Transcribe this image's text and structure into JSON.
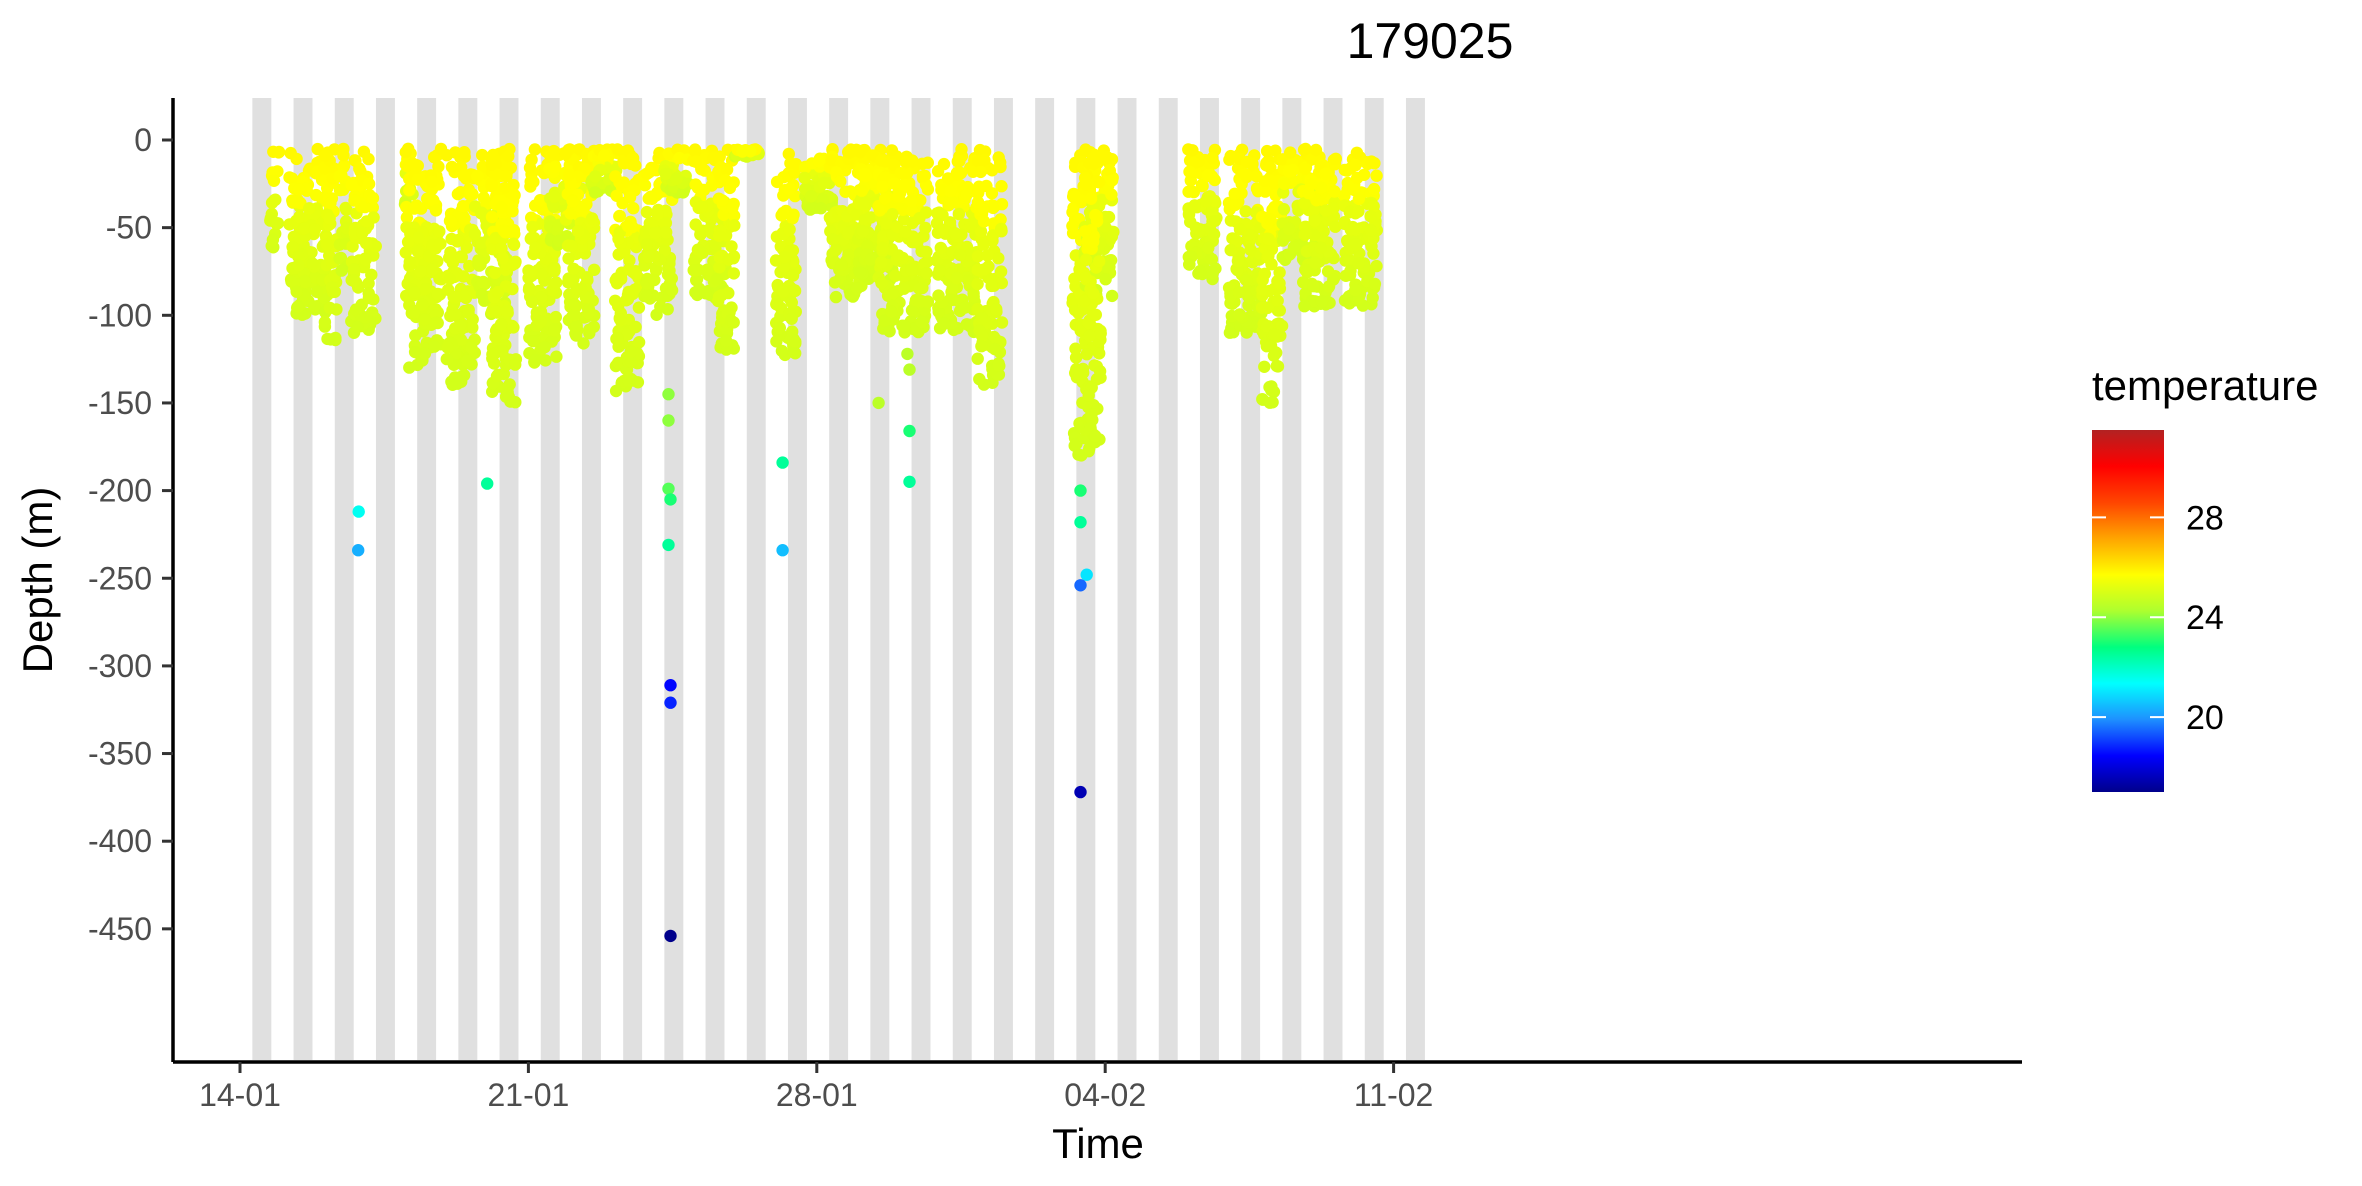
{
  "chart_data": {
    "type": "scatter",
    "title": "179025",
    "xlabel": "Time",
    "ylabel": "Depth (m)",
    "x_unit": "day (0 = 14-01)",
    "xlim": [
      -0.5,
      43.5
    ],
    "ylim": [
      -525,
      25
    ],
    "x_ticks": [
      {
        "value": 0,
        "label": "14-01"
      },
      {
        "value": 7,
        "label": "21-01"
      },
      {
        "value": 14,
        "label": "28-01"
      },
      {
        "value": 21,
        "label": "04-02"
      },
      {
        "value": 28,
        "label": "11-02"
      }
    ],
    "y_ticks": [
      {
        "value": 0,
        "label": "0"
      },
      {
        "value": -50,
        "label": "-50"
      },
      {
        "value": -100,
        "label": "-100"
      },
      {
        "value": -150,
        "label": "-150"
      },
      {
        "value": -200,
        "label": "-200"
      },
      {
        "value": -250,
        "label": "-250"
      },
      {
        "value": -300,
        "label": "-300"
      },
      {
        "value": -350,
        "label": "-350"
      },
      {
        "value": -400,
        "label": "-400"
      },
      {
        "value": -450,
        "label": "-450"
      }
    ],
    "night_bands": [
      {
        "start": 0.3,
        "end": 0.76
      },
      {
        "start": 1.3,
        "end": 1.76
      },
      {
        "start": 2.3,
        "end": 2.76
      },
      {
        "start": 3.3,
        "end": 3.76
      },
      {
        "start": 4.3,
        "end": 4.76
      },
      {
        "start": 5.3,
        "end": 5.76
      },
      {
        "start": 6.3,
        "end": 6.76
      },
      {
        "start": 7.3,
        "end": 7.76
      },
      {
        "start": 8.3,
        "end": 8.76
      },
      {
        "start": 9.3,
        "end": 9.76
      },
      {
        "start": 10.3,
        "end": 10.76
      },
      {
        "start": 11.3,
        "end": 11.76
      },
      {
        "start": 12.3,
        "end": 12.76
      },
      {
        "start": 13.3,
        "end": 13.76
      },
      {
        "start": 14.3,
        "end": 14.76
      },
      {
        "start": 15.3,
        "end": 15.76
      },
      {
        "start": 16.3,
        "end": 16.76
      },
      {
        "start": 17.3,
        "end": 17.76
      },
      {
        "start": 18.3,
        "end": 18.76
      },
      {
        "start": 19.3,
        "end": 19.76
      },
      {
        "start": 20.3,
        "end": 20.76
      },
      {
        "start": 21.3,
        "end": 21.76
      },
      {
        "start": 22.3,
        "end": 22.76
      },
      {
        "start": 23.3,
        "end": 23.76
      },
      {
        "start": 24.3,
        "end": 24.76
      },
      {
        "start": 25.3,
        "end": 25.76
      },
      {
        "start": 26.3,
        "end": 26.76
      },
      {
        "start": 27.3,
        "end": 27.76
      },
      {
        "start": 28.3,
        "end": 28.76
      }
    ],
    "surface_temperature": 25.5,
    "dive_clusters": [
      {
        "start": 0.73,
        "end": 0.95,
        "max_depth": -65
      },
      {
        "start": 1.2,
        "end": 2.2,
        "max_depth": -100
      },
      {
        "start": 2.05,
        "end": 2.35,
        "max_depth": -115
      },
      {
        "start": 2.4,
        "end": 2.6,
        "max_depth": -75
      },
      {
        "start": 2.7,
        "end": 3.3,
        "max_depth": -110
      },
      {
        "start": 4.0,
        "end": 4.2,
        "max_depth": -40
      },
      {
        "start": 4.0,
        "end": 4.9,
        "max_depth": -130
      },
      {
        "start": 5.0,
        "end": 5.7,
        "max_depth": -140
      },
      {
        "start": 5.7,
        "end": 6.5,
        "max_depth": -100
      },
      {
        "start": 6.1,
        "end": 6.7,
        "max_depth": -155
      },
      {
        "start": 7.0,
        "end": 7.7,
        "max_depth": -130
      },
      {
        "start": 7.5,
        "end": 8.3,
        "max_depth": -60
      },
      {
        "start": 7.9,
        "end": 8.6,
        "max_depth": -120
      },
      {
        "start": 8.5,
        "end": 9.2,
        "max_depth": -30
      },
      {
        "start": 9.1,
        "end": 9.7,
        "max_depth": -145
      },
      {
        "start": 9.8,
        "end": 10.5,
        "max_depth": -100
      },
      {
        "start": 10.3,
        "end": 10.9,
        "max_depth": -30
      },
      {
        "start": 11.0,
        "end": 11.8,
        "max_depth": -90
      },
      {
        "start": 11.6,
        "end": 12.0,
        "max_depth": -120
      },
      {
        "start": 12.0,
        "end": 12.6,
        "max_depth": -10
      },
      {
        "start": 13.0,
        "end": 13.5,
        "max_depth": -125
      },
      {
        "start": 13.7,
        "end": 14.4,
        "max_depth": -40
      },
      {
        "start": 14.3,
        "end": 15.2,
        "max_depth": -90
      },
      {
        "start": 15.0,
        "end": 15.9,
        "max_depth": -80
      },
      {
        "start": 15.5,
        "end": 16.7,
        "max_depth": -110
      },
      {
        "start": 16.9,
        "end": 17.9,
        "max_depth": -110
      },
      {
        "start": 17.9,
        "end": 18.5,
        "max_depth": -140
      },
      {
        "start": 20.2,
        "end": 20.5,
        "max_depth": -180
      },
      {
        "start": 20.5,
        "end": 21.2,
        "max_depth": -90
      },
      {
        "start": 20.5,
        "end": 20.9,
        "max_depth": -180
      },
      {
        "start": 23.0,
        "end": 23.7,
        "max_depth": -80
      },
      {
        "start": 24.0,
        "end": 24.8,
        "max_depth": -110
      },
      {
        "start": 24.8,
        "end": 25.3,
        "max_depth": -150
      },
      {
        "start": 25.3,
        "end": 26.3,
        "max_depth": -70
      },
      {
        "start": 25.8,
        "end": 26.6,
        "max_depth": -95
      },
      {
        "start": 26.8,
        "end": 27.6,
        "max_depth": -95
      }
    ],
    "points": [
      {
        "x": 2.88,
        "y": -212,
        "temp": 21.5
      },
      {
        "x": 2.87,
        "y": -234,
        "temp": 20.3
      },
      {
        "x": 6.0,
        "y": -196,
        "temp": 22.5
      },
      {
        "x": 10.4,
        "y": -145,
        "temp": 24.0
      },
      {
        "x": 10.4,
        "y": -160,
        "temp": 24.0
      },
      {
        "x": 10.4,
        "y": -199,
        "temp": 23.5
      },
      {
        "x": 10.45,
        "y": -205,
        "temp": 23.0
      },
      {
        "x": 10.4,
        "y": -231,
        "temp": 22.5
      },
      {
        "x": 10.45,
        "y": -311,
        "temp": 18.5
      },
      {
        "x": 10.45,
        "y": -321,
        "temp": 18.8
      },
      {
        "x": 10.45,
        "y": -454,
        "temp": 17.0
      },
      {
        "x": 13.17,
        "y": -184,
        "temp": 22.5
      },
      {
        "x": 13.17,
        "y": -234,
        "temp": 20.5
      },
      {
        "x": 15.5,
        "y": -150,
        "temp": 24.5
      },
      {
        "x": 16.2,
        "y": -122,
        "temp": 24.5
      },
      {
        "x": 16.25,
        "y": -131,
        "temp": 24.5
      },
      {
        "x": 16.25,
        "y": -166,
        "temp": 23.0
      },
      {
        "x": 16.25,
        "y": -195,
        "temp": 22.5
      },
      {
        "x": 20.4,
        "y": -200,
        "temp": 23.0
      },
      {
        "x": 20.4,
        "y": -218,
        "temp": 22.5
      },
      {
        "x": 20.55,
        "y": -248,
        "temp": 21.0
      },
      {
        "x": 20.4,
        "y": -254,
        "temp": 19.5
      },
      {
        "x": 20.4,
        "y": -372,
        "temp": 17.5
      }
    ],
    "legend": {
      "title": "temperature",
      "position": "right",
      "min": 17,
      "max": 31.5,
      "ticks": [
        {
          "value": 28,
          "label": "28"
        },
        {
          "value": 24,
          "label": "24"
        },
        {
          "value": 20,
          "label": "20"
        }
      ],
      "colors": [
        "#00008B",
        "#0000FF",
        "#1E90FF",
        "#00FFFF",
        "#00FF7F",
        "#ADFF2F",
        "#FFFF00",
        "#FFA500",
        "#FF4500",
        "#FF0000",
        "#B22222"
      ]
    }
  }
}
